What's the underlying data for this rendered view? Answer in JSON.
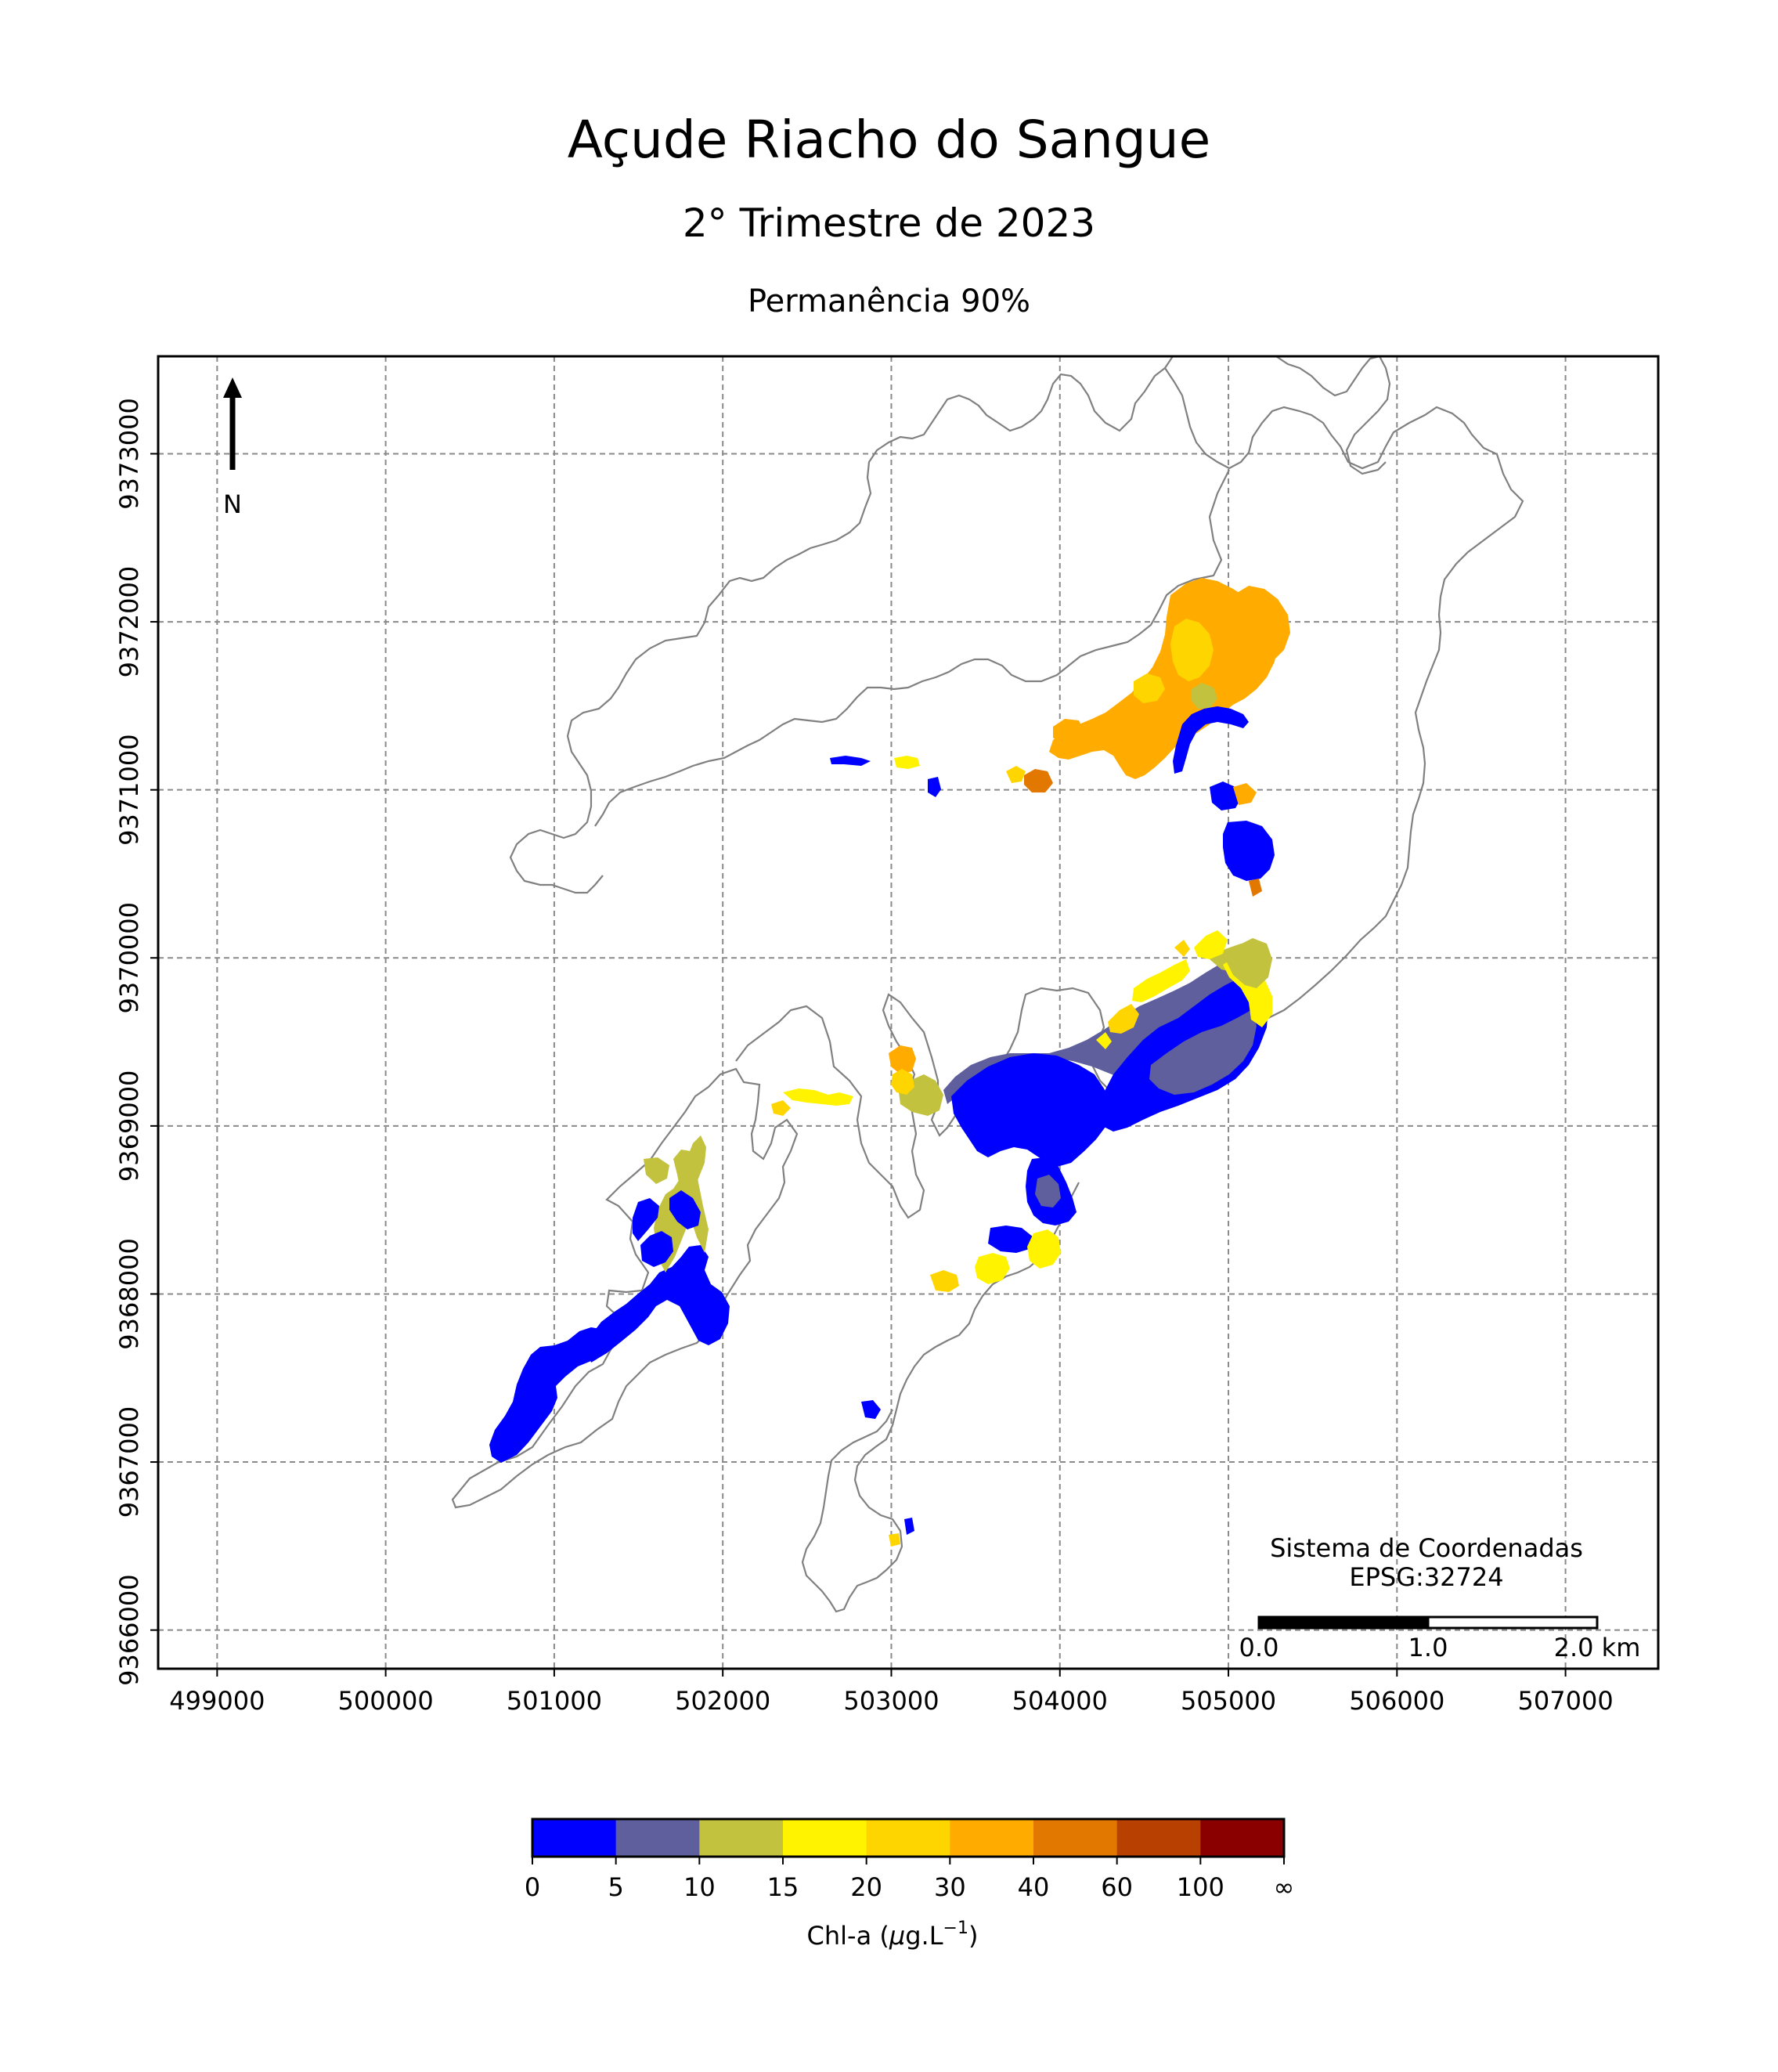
{
  "header": {
    "title": "Açude Riacho do Sangue",
    "subtitle": "2° Trimestre de 2023",
    "subtitle2": "Permanência 90%"
  },
  "north_arrow": {
    "label": "N",
    "icon": "north-arrow-icon"
  },
  "coordinate_system": {
    "line1": "Sistema de Coordenadas",
    "line2": "EPSG:32724"
  },
  "scale_bar": {
    "labels": [
      "0.0",
      "1.0",
      "2.0 km"
    ],
    "segments_km": [
      0,
      1,
      2
    ]
  },
  "axes": {
    "x_ticks": [
      499000,
      500000,
      501000,
      502000,
      503000,
      504000,
      505000,
      506000,
      507000
    ],
    "y_ticks": [
      9366000,
      9367000,
      9368000,
      9369000,
      9370000,
      9371000,
      9372000,
      9373000
    ],
    "xlim": [
      498650,
      507550
    ],
    "ylim": [
      9365770,
      9373580
    ],
    "grid": true
  },
  "colorbar": {
    "title_prefix": "Chl-a (",
    "title_mu": "μ",
    "title_mid": "g.L",
    "title_sup": "−1",
    "title_suffix": ")",
    "tick_labels": [
      "0",
      "5",
      "10",
      "15",
      "20",
      "30",
      "40",
      "60",
      "100",
      "∞"
    ],
    "colors": [
      "#0000ff",
      "#5f5f9e",
      "#c2c23e",
      "#fff300",
      "#ffd500",
      "#ffab00",
      "#e37800",
      "#b84000",
      "#8a0000"
    ]
  },
  "colors": {
    "outline": "#808080",
    "grid": "#8a8a8a"
  }
}
